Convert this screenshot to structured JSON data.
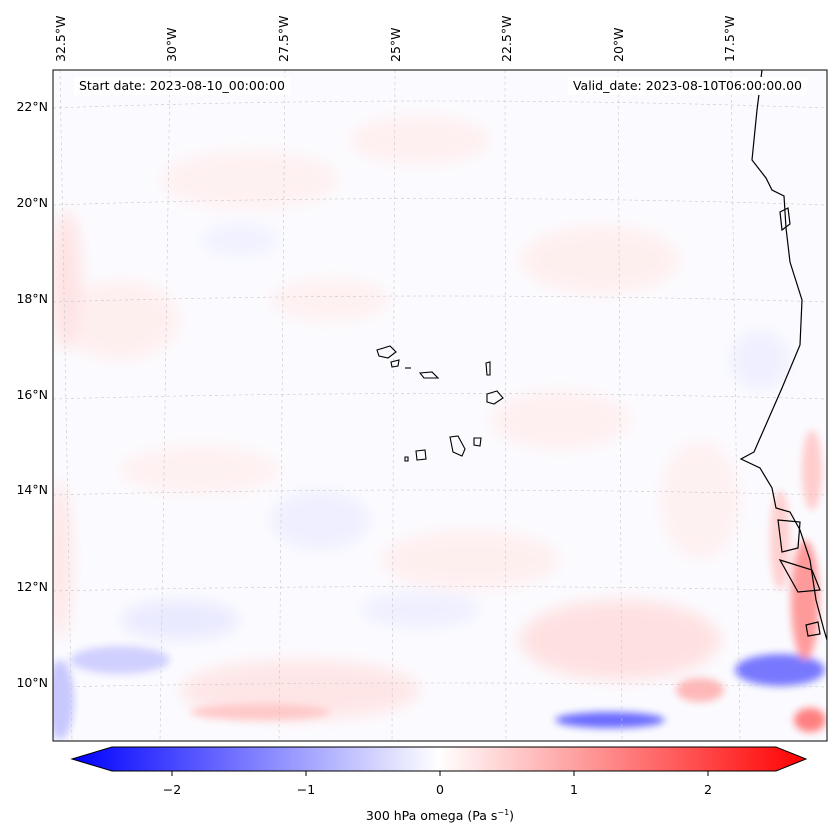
{
  "header": {
    "start_date": "Start date: 2023-08-10_00:00:00",
    "valid_date": "Valid_date: 2023-08-10T06:00:00.00"
  },
  "axes": {
    "lat_labels": [
      "22°N",
      "20°N",
      "18°N",
      "16°N",
      "14°N",
      "12°N",
      "10°N"
    ],
    "lon_labels": [
      "32.5°W",
      "30°W",
      "27.5°W",
      "25°W",
      "22.5°W",
      "20°W",
      "17.5°W"
    ]
  },
  "colorbar": {
    "label_prefix": "300 hPa omega (Pa s",
    "label_sup": "−1",
    "label_suffix": ")",
    "ticks": [
      "−2",
      "−1",
      "0",
      "1",
      "2"
    ],
    "range": [
      -2.5,
      2.5
    ],
    "colors": {
      "negative": "#0000ff",
      "zero": "#ffffff",
      "positive": "#ff0000"
    }
  }
}
